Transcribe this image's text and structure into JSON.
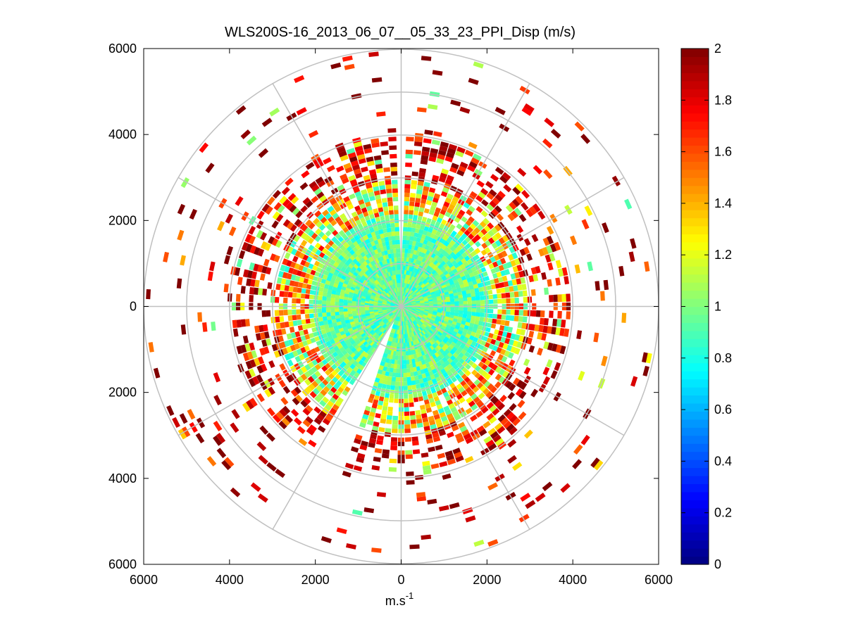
{
  "chart_data": {
    "type": "heatmap",
    "subtype": "polar-ppi",
    "title": "WLS200S-16_2013_06_07__05_33_23_PPI_Disp (m/s)",
    "xlabel": "m.s",
    "xlabel_superscript": "-1",
    "ylabel": "",
    "xlim": [
      -6000,
      6000
    ],
    "ylim": [
      -6000,
      6000
    ],
    "x_ticks": [
      {
        "value": -6000,
        "label": "6000"
      },
      {
        "value": -4000,
        "label": "4000"
      },
      {
        "value": -2000,
        "label": "2000"
      },
      {
        "value": 0,
        "label": "0"
      },
      {
        "value": 2000,
        "label": "2000"
      },
      {
        "value": 4000,
        "label": "4000"
      },
      {
        "value": 6000,
        "label": "6000"
      }
    ],
    "y_ticks": [
      {
        "value": 6000,
        "label": "6000"
      },
      {
        "value": 4000,
        "label": "4000"
      },
      {
        "value": 2000,
        "label": "2000"
      },
      {
        "value": 0,
        "label": "0"
      },
      {
        "value": -2000,
        "label": "2000"
      },
      {
        "value": -4000,
        "label": "4000"
      },
      {
        "value": -6000,
        "label": "6000"
      }
    ],
    "polar_grid": {
      "ring_radii": [
        1000,
        2000,
        3000,
        4000,
        5000,
        6000
      ],
      "spoke_angles_deg": [
        0,
        30,
        60,
        90,
        120,
        150,
        180,
        210,
        240,
        270,
        300,
        330
      ]
    },
    "colorbar": {
      "colormap": "jet",
      "range": [
        0,
        2
      ],
      "ticks": [
        {
          "value": 0,
          "label": "0"
        },
        {
          "value": 0.2,
          "label": "0.2"
        },
        {
          "value": 0.4,
          "label": "0.4"
        },
        {
          "value": 0.6,
          "label": "0.6"
        },
        {
          "value": 0.8,
          "label": "0.8"
        },
        {
          "value": 1,
          "label": "1"
        },
        {
          "value": 1.2,
          "label": "1.2"
        },
        {
          "value": 1.4,
          "label": "1.4"
        },
        {
          "value": 1.6,
          "label": "1.6"
        },
        {
          "value": 1.8,
          "label": "1.8"
        },
        {
          "value": 2,
          "label": "2"
        }
      ]
    },
    "range_gates": {
      "first": 100,
      "step": 100,
      "last": 5900
    },
    "azimuth_step_deg": 3,
    "missing_sectors_deg": [
      [
        -2,
        1
      ],
      [
        200,
        212
      ]
    ],
    "field_description_by_range": [
      {
        "range": [
          0,
          2200
        ],
        "typical_value": 0.95,
        "spread": 0.2,
        "coverage": 1.0
      },
      {
        "range": [
          2200,
          3000
        ],
        "typical_value": 1.3,
        "spread": 0.5,
        "coverage": 0.85
      },
      {
        "range": [
          3000,
          4000
        ],
        "typical_value": 1.85,
        "spread": 0.3,
        "coverage": 0.45
      },
      {
        "range": [
          4000,
          6000
        ],
        "typical_value": 1.9,
        "spread": 0.4,
        "coverage": 0.07
      }
    ],
    "scatter_seed": 7
  },
  "colors": {
    "grid": "#c0c0c0",
    "axes": "#000000",
    "background": "#ffffff"
  }
}
